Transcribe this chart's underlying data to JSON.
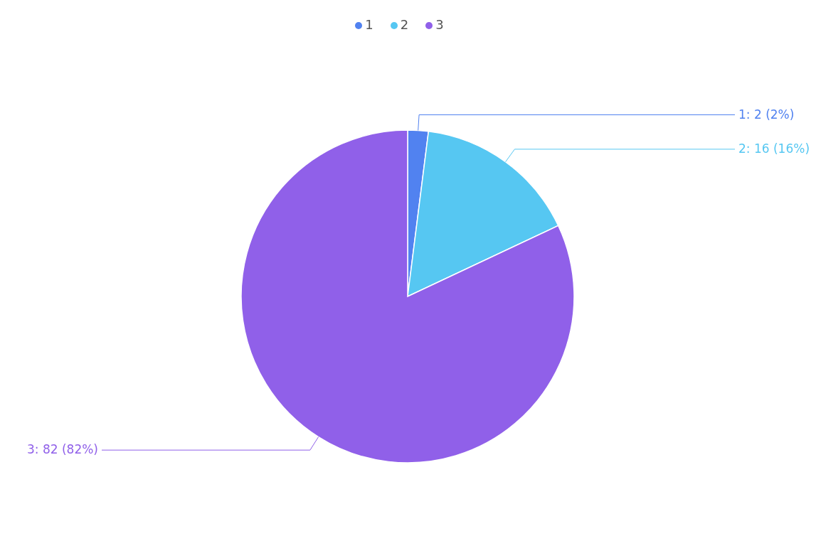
{
  "chart_data": {
    "type": "pie",
    "categories": [
      "1",
      "2",
      "3"
    ],
    "values": [
      2,
      16,
      82
    ],
    "colors": [
      "#5182f0",
      "#56c7f2",
      "#9060e9"
    ],
    "value_labels": [
      "1: 2 (2%)",
      "2: 16 (16%)",
      "3: 82 (82%)"
    ],
    "legend": "top"
  }
}
